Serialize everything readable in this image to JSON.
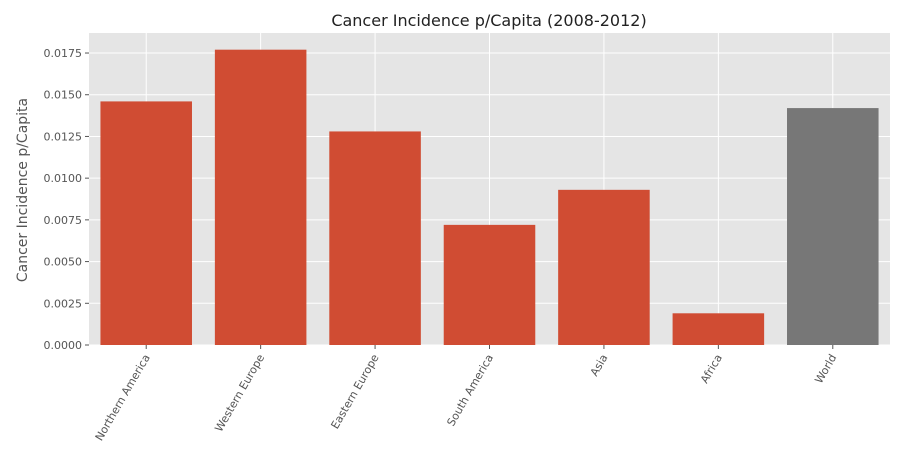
{
  "chart_data": {
    "type": "bar",
    "title": "Cancer Incidence p/Capita (2008-2012)",
    "xlabel": "",
    "ylabel": "Cancer Incidence p/Capita",
    "categories": [
      "Northern America",
      "Western Europe",
      "Eastern Europe",
      "South America",
      "Asia",
      "Africa",
      "World"
    ],
    "values": [
      0.0146,
      0.0177,
      0.0128,
      0.0072,
      0.0093,
      0.0019,
      0.0142
    ],
    "bar_colors": [
      "#d04c33",
      "#d04c33",
      "#d04c33",
      "#d04c33",
      "#d04c33",
      "#d04c33",
      "#777777"
    ],
    "ylim": [
      0,
      0.0187
    ],
    "yticks": [
      "0.0000",
      "0.0025",
      "0.0050",
      "0.0075",
      "0.0100",
      "0.0125",
      "0.0150",
      "0.0175"
    ],
    "xtick_rotation": 60,
    "grid": true,
    "style": {
      "background": "#e5e5e5",
      "grid_color": "#ffffff"
    }
  }
}
